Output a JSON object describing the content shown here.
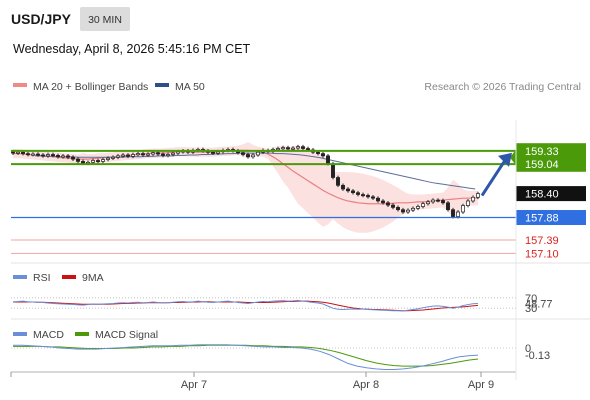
{
  "header": {
    "symbol": "USD/JPY",
    "interval_button": "30 MIN",
    "timestamp": "Wednesday, April 8, 2026 5:45:16 PM CET"
  },
  "legend": {
    "ma20": "MA 20 + Bollinger Bands",
    "ma50": "MA 50",
    "credit": "Research © 2026 Trading Central"
  },
  "colors": {
    "green": "#4a9a0a",
    "blue": "#2f6fe0",
    "red": "#e06060",
    "ma20": "#e98080",
    "ma50": "#5a6e9a",
    "band": "#fbdcdc"
  },
  "chart_data": {
    "type": "line",
    "x_ticks": [
      "Apr 7",
      "Apr 8",
      "Apr 9"
    ],
    "price_panel": {
      "levels": [
        {
          "value": "159.33",
          "kind": "resistance"
        },
        {
          "value": "159.04",
          "kind": "resistance"
        },
        {
          "value": "158.40",
          "kind": "last"
        },
        {
          "value": "157.88",
          "kind": "pivot"
        },
        {
          "value": "157.39",
          "kind": "support"
        },
        {
          "value": "157.10",
          "kind": "support"
        }
      ],
      "ylim": [
        157.0,
        160.0
      ],
      "close": [
        159.28,
        159.3,
        159.27,
        159.25,
        159.26,
        159.24,
        159.22,
        159.25,
        159.23,
        159.2,
        159.22,
        159.19,
        159.15,
        159.1,
        159.06,
        159.08,
        159.12,
        159.1,
        159.14,
        159.17,
        159.19,
        159.22,
        159.24,
        159.21,
        159.25,
        159.27,
        159.24,
        159.26,
        159.29,
        159.26,
        159.23,
        159.25,
        159.28,
        159.31,
        159.33,
        159.3,
        159.34,
        159.36,
        159.33,
        159.3,
        159.28,
        159.31,
        159.34,
        159.36,
        159.33,
        159.29,
        159.25,
        159.2,
        159.24,
        159.3,
        159.34,
        159.32,
        159.36,
        159.38,
        159.4,
        159.37,
        159.39,
        159.42,
        159.38,
        159.35,
        159.3,
        159.27,
        159.22,
        159.05,
        158.75,
        158.58,
        158.5,
        158.46,
        158.42,
        158.38,
        158.36,
        158.33,
        158.3,
        158.24,
        158.2,
        158.15,
        158.1,
        158.05,
        158.0,
        158.04,
        158.08,
        158.12,
        158.18,
        158.22,
        158.26,
        158.25,
        158.2,
        158.05,
        157.9,
        158.0,
        158.14,
        158.24,
        158.32,
        158.4
      ],
      "ma20": [
        159.27,
        159.27,
        159.26,
        159.25,
        159.24,
        159.23,
        159.22,
        159.21,
        159.2,
        159.19,
        159.18,
        159.17,
        159.16,
        159.15,
        159.15,
        159.15,
        159.16,
        159.17,
        159.18,
        159.19,
        159.2,
        159.21,
        159.22,
        159.23,
        159.24,
        159.25,
        159.26,
        159.27,
        159.28,
        159.28,
        159.28,
        159.29,
        159.3,
        159.31,
        159.31,
        159.31,
        159.3,
        159.3,
        159.3,
        159.3,
        159.3,
        159.31,
        159.32,
        159.32,
        159.33,
        159.34,
        159.34,
        159.34,
        159.33,
        159.32,
        159.3,
        159.26,
        159.2,
        159.13,
        159.05,
        158.97,
        158.89,
        158.82,
        158.75,
        158.68,
        158.61,
        158.54,
        158.47,
        158.41,
        158.36,
        158.31,
        158.27,
        158.24,
        158.22,
        158.2,
        158.19,
        158.18,
        158.18,
        158.18,
        158.18,
        158.18,
        158.19,
        158.2,
        158.2,
        158.2,
        158.21,
        158.22,
        158.22,
        158.23,
        158.24,
        158.25,
        158.26,
        158.27,
        158.28,
        158.29,
        158.3,
        158.3,
        158.3,
        158.3
      ],
      "ma50": [
        159.22,
        159.22,
        159.21,
        159.21,
        159.2,
        159.2,
        159.2,
        159.19,
        159.19,
        159.19,
        159.19,
        159.19,
        159.19,
        159.19,
        159.19,
        159.2,
        159.2,
        159.2,
        159.21,
        159.21,
        159.22,
        159.22,
        159.22,
        159.23,
        159.23,
        159.24,
        159.24,
        159.25,
        159.25,
        159.26,
        159.26,
        159.27,
        159.27,
        159.28,
        159.28,
        159.28,
        159.28,
        159.28,
        159.28,
        159.27,
        159.27,
        159.26,
        159.25,
        159.24,
        159.22,
        159.2,
        159.18,
        159.15,
        159.12,
        159.09,
        159.06,
        159.03,
        159.0,
        158.97,
        158.94,
        158.91,
        158.88,
        158.85,
        158.82,
        158.79,
        158.76,
        158.73,
        158.7,
        158.67,
        158.64,
        158.62,
        158.6,
        158.58,
        158.56,
        158.54,
        158.52,
        158.5
      ],
      "forecast_arrow": {
        "from": "158.40",
        "to": "159.33"
      }
    },
    "rsi_panel": {
      "legend": [
        "RSI",
        "9MA"
      ],
      "levels": [
        "70",
        "30"
      ],
      "value_label": "48.77",
      "ylim": [
        0,
        100
      ],
      "rsi": [
        55,
        56,
        57,
        55,
        54,
        53,
        52,
        50,
        48,
        47,
        46,
        45,
        44,
        43,
        42,
        44,
        46,
        45,
        46,
        47,
        48,
        50,
        51,
        50,
        52,
        53,
        51,
        52,
        54,
        52,
        50,
        51,
        53,
        55,
        56,
        54,
        55,
        57,
        55,
        53,
        52,
        54,
        56,
        57,
        55,
        52,
        50,
        48,
        51,
        54,
        56,
        55,
        57,
        58,
        59,
        57,
        58,
        60,
        57,
        55,
        52,
        50,
        46,
        38,
        30,
        26,
        25,
        26,
        27,
        26,
        27,
        25,
        24,
        23,
        22,
        21,
        20,
        20,
        19,
        22,
        25,
        28,
        32,
        35,
        38,
        39,
        37,
        34,
        30,
        34,
        40,
        44,
        47,
        48.77
      ],
      "ma9": [
        54,
        54,
        54,
        54,
        54,
        53,
        53,
        52,
        51,
        50,
        49,
        48,
        47,
        46,
        45,
        45,
        45,
        45,
        45,
        45,
        46,
        47,
        48,
        48,
        49,
        50,
        50,
        51,
        51,
        51,
        51,
        51,
        52,
        52,
        53,
        53,
        54,
        54,
        55,
        55,
        54,
        54,
        54,
        54,
        54,
        54,
        53,
        52,
        52,
        52,
        52,
        52,
        53,
        54,
        55,
        56,
        56,
        57,
        57,
        57,
        56,
        55,
        53,
        50,
        46,
        42,
        38,
        34,
        31,
        29,
        27,
        26,
        25,
        25,
        24,
        23,
        22,
        21,
        20,
        20,
        21,
        22,
        23,
        25,
        27,
        29,
        31,
        32,
        33,
        34,
        35,
        37,
        39,
        41
      ]
    },
    "macd_panel": {
      "legend": [
        "MACD",
        "MACD Signal"
      ],
      "zero_label": "0",
      "value_label": "-0.13",
      "macd": [
        0.05,
        0.05,
        0.04,
        0.03,
        0.02,
        0.0,
        -0.01,
        -0.02,
        -0.02,
        -0.02,
        -0.01,
        0.0,
        0.01,
        0.02,
        0.03,
        0.04,
        0.04,
        0.04,
        0.05,
        0.05,
        0.06,
        0.06,
        0.06,
        0.06,
        0.05,
        0.04,
        0.03,
        0.02,
        0.02,
        0.01,
        0.01,
        0.0,
        -0.02,
        -0.06,
        -0.12,
        -0.2,
        -0.28,
        -0.33,
        -0.36,
        -0.38,
        -0.39,
        -0.39,
        -0.38,
        -0.36,
        -0.33,
        -0.29,
        -0.25,
        -0.2,
        -0.16,
        -0.14,
        -0.13
      ],
      "signal": [
        0.03,
        0.03,
        0.03,
        0.03,
        0.02,
        0.02,
        0.01,
        0.0,
        -0.01,
        -0.01,
        -0.01,
        -0.01,
        0.0,
        0.0,
        0.01,
        0.02,
        0.02,
        0.03,
        0.03,
        0.04,
        0.04,
        0.05,
        0.05,
        0.05,
        0.05,
        0.05,
        0.04,
        0.04,
        0.03,
        0.03,
        0.02,
        0.02,
        0.01,
        -0.01,
        -0.04,
        -0.08,
        -0.13,
        -0.18,
        -0.23,
        -0.27,
        -0.3,
        -0.32,
        -0.33,
        -0.33,
        -0.33,
        -0.32,
        -0.3,
        -0.28,
        -0.25,
        -0.22,
        -0.2
      ]
    }
  }
}
